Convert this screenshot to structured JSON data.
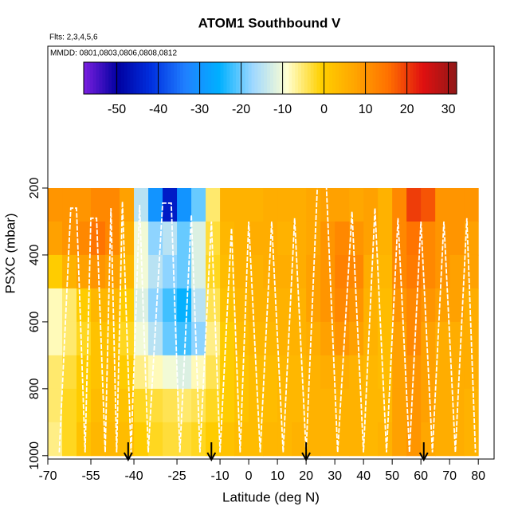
{
  "chart_data": {
    "type": "heatmap",
    "title": "ATOM1 Southbound V",
    "subtitle": "Flts: 2,3,4,5,6",
    "annotation": "MMDD: 0801,0803,0806,0808,0812",
    "xlabel": "Latitude (deg N)",
    "ylabel": "PSXC (mbar)",
    "xlim": [
      -70,
      85.5
    ],
    "xticks": [
      -70,
      -55,
      -40,
      -25,
      -10,
      0,
      10,
      20,
      30,
      40,
      50,
      60,
      70,
      80
    ],
    "ylim": [
      1010,
      -224
    ],
    "yticks": [
      200,
      400,
      600,
      800,
      1000
    ],
    "x_edges": [
      -70,
      -65,
      -60,
      -55,
      -50,
      -45,
      -40,
      -35,
      -30,
      -25,
      -20,
      -15,
      -10,
      -5,
      0,
      5,
      10,
      15,
      20,
      25,
      30,
      35,
      40,
      45,
      50,
      55,
      60,
      65,
      70,
      75,
      80
    ],
    "y_edges": [
      200,
      300,
      400,
      500,
      600,
      700,
      800,
      900,
      1000
    ],
    "z": [
      [
        10,
        10,
        10,
        12,
        12,
        8,
        -15,
        -30,
        -45,
        -30,
        -20,
        -5,
        5,
        5,
        5,
        6,
        6,
        6,
        7,
        8,
        8,
        7,
        8,
        5,
        12,
        20,
        18,
        10,
        10,
        10
      ],
      [
        8,
        10,
        12,
        15,
        12,
        6,
        -10,
        -18,
        -15,
        -20,
        -12,
        -3,
        4,
        5,
        6,
        6,
        5,
        6,
        7,
        10,
        12,
        10,
        8,
        5,
        12,
        15,
        12,
        10,
        10,
        8
      ],
      [
        0,
        5,
        8,
        10,
        8,
        4,
        -10,
        -15,
        -18,
        -20,
        -12,
        -2,
        3,
        5,
        5,
        6,
        6,
        6,
        8,
        10,
        13,
        12,
        6,
        4,
        12,
        14,
        12,
        10,
        8,
        8
      ],
      [
        -8,
        -5,
        0,
        4,
        4,
        0,
        -12,
        -18,
        -22,
        -25,
        -15,
        -4,
        2,
        4,
        5,
        5,
        5,
        5,
        8,
        10,
        12,
        10,
        5,
        3,
        10,
        12,
        10,
        8,
        8,
        6
      ],
      [
        -8,
        -5,
        -2,
        2,
        2,
        -2,
        -10,
        -15,
        -20,
        -22,
        -18,
        -6,
        0,
        3,
        4,
        4,
        5,
        5,
        6,
        8,
        10,
        8,
        5,
        3,
        8,
        12,
        8,
        6,
        6,
        6
      ],
      [
        -5,
        -3,
        0,
        2,
        3,
        0,
        -6,
        -8,
        -10,
        -12,
        -8,
        -4,
        0,
        2,
        3,
        3,
        4,
        4,
        5,
        6,
        6,
        5,
        4,
        3,
        8,
        10,
        8,
        6,
        6,
        6
      ],
      [
        -5,
        -2,
        0,
        3,
        3,
        2,
        -2,
        -3,
        -4,
        -5,
        -4,
        -2,
        0,
        2,
        3,
        3,
        4,
        4,
        5,
        5,
        5,
        5,
        4,
        4,
        8,
        10,
        8,
        6,
        6,
        5
      ],
      [
        -6,
        -2,
        2,
        4,
        4,
        3,
        0,
        -2,
        -3,
        -3,
        -2,
        0,
        2,
        3,
        3,
        4,
        4,
        5,
        5,
        5,
        5,
        5,
        4,
        5,
        8,
        10,
        7,
        6,
        6,
        5
      ]
    ],
    "colorbar": {
      "lim": [
        -58,
        32
      ],
      "ticks": [
        -50,
        -40,
        -30,
        -20,
        -10,
        0,
        10,
        20,
        30
      ],
      "colors": [
        "#7b1fe0",
        "#0000a0",
        "#0030e0",
        "#2080ff",
        "#00b0ff",
        "#a0d8ff",
        "#ffffd0",
        "#ffd000",
        "#ffa500",
        "#ff7000",
        "#e01010",
        "#901818"
      ]
    },
    "track": {
      "color": "#ffffff",
      "x": [
        -66,
        -62,
        -60,
        -57,
        -55,
        -53,
        -50,
        -48,
        -46,
        -44,
        -41,
        -38,
        -35,
        -30,
        -27,
        -24,
        -20,
        -17,
        -13,
        -10,
        -6,
        -3,
        0,
        4,
        8,
        12,
        16,
        20,
        24,
        27,
        31,
        36,
        40,
        44,
        48,
        52,
        56,
        60,
        64,
        68,
        72,
        76,
        79
      ],
      "y": [
        990,
        260,
        260,
        990,
        290,
        290,
        990,
        260,
        990,
        240,
        990,
        250,
        990,
        245,
        245,
        990,
        280,
        990,
        300,
        990,
        320,
        990,
        300,
        990,
        300,
        990,
        290,
        990,
        180,
        180,
        990,
        270,
        990,
        260,
        990,
        290,
        990,
        300,
        990,
        300,
        990,
        290,
        990
      ]
    },
    "markers": [
      -42,
      -13,
      20,
      61
    ]
  }
}
